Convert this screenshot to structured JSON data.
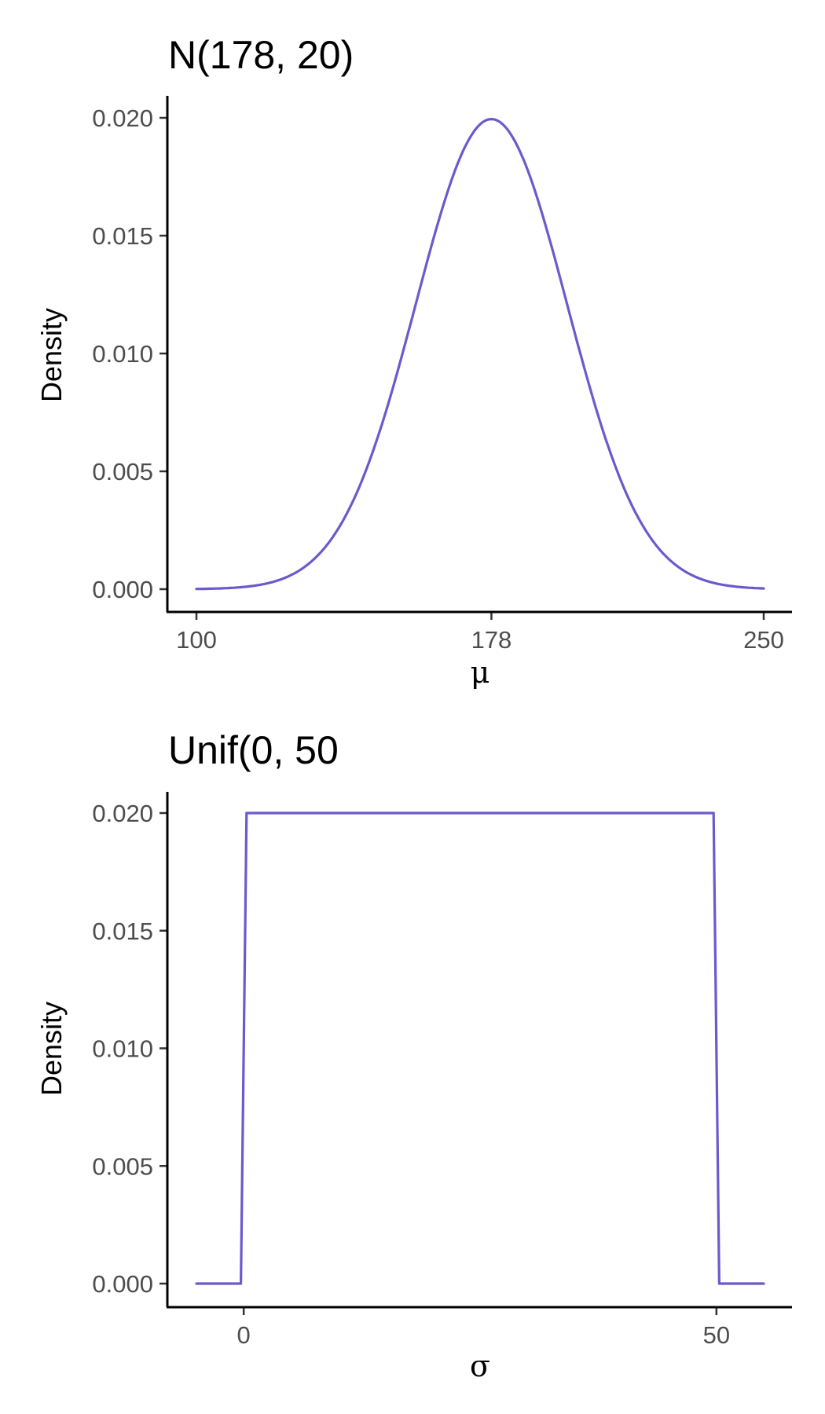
{
  "colors": {
    "line": "#6a5acd",
    "axis": "#000000",
    "tick_label": "#4d4d4d"
  },
  "chart_data": [
    {
      "type": "line",
      "title": "N(178, 20)",
      "xlabel": "μ",
      "ylabel": "Density",
      "distribution": "normal",
      "mean": 178,
      "sd": 20,
      "xlim": [
        100,
        250
      ],
      "ylim": [
        0,
        0.02
      ],
      "xticks": [
        100,
        178,
        250
      ],
      "xtick_labels": [
        "100",
        "178",
        "250"
      ],
      "yticks": [
        0,
        0.005,
        0.01,
        0.015,
        0.02
      ],
      "ytick_labels": [
        "0.000",
        "0.005",
        "0.010",
        "0.015",
        "0.020"
      ],
      "series": [
        {
          "x": [
            100,
            110,
            120,
            130,
            140,
            150,
            160,
            165,
            170,
            175,
            178,
            181,
            186,
            190,
            196,
            200,
            210,
            220,
            230,
            240,
            250
          ],
          "y": [
            1e-05,
            5e-05,
            0.0003,
            0.00112,
            0.00323,
            0.00748,
            0.01333,
            0.01609,
            0.01841,
            0.01973,
            0.01995,
            0.01972,
            0.01841,
            0.01669,
            0.01333,
            0.011,
            0.00552,
            0.00223,
            0.00068,
            0.00016,
            3e-05
          ]
        }
      ],
      "grid": false,
      "legend": "none"
    },
    {
      "type": "line",
      "title": "Unif(0, 50",
      "xlabel": "σ",
      "ylabel": "Density",
      "distribution": "uniform",
      "min": 0,
      "max": 50,
      "xlim": [
        -5,
        55
      ],
      "ylim": [
        0,
        0.02
      ],
      "xticks": [
        0,
        50
      ],
      "xtick_labels": [
        "0",
        "50"
      ],
      "yticks": [
        0,
        0.005,
        0.01,
        0.015,
        0.02
      ],
      "ytick_labels": [
        "0.000",
        "0.005",
        "0.010",
        "0.015",
        "0.020"
      ],
      "series": [
        {
          "x": [
            -5,
            -0.3,
            0.3,
            49.7,
            50.3,
            55
          ],
          "y": [
            0,
            0,
            0.02,
            0.02,
            0,
            0
          ]
        }
      ],
      "grid": false,
      "legend": "none"
    }
  ]
}
